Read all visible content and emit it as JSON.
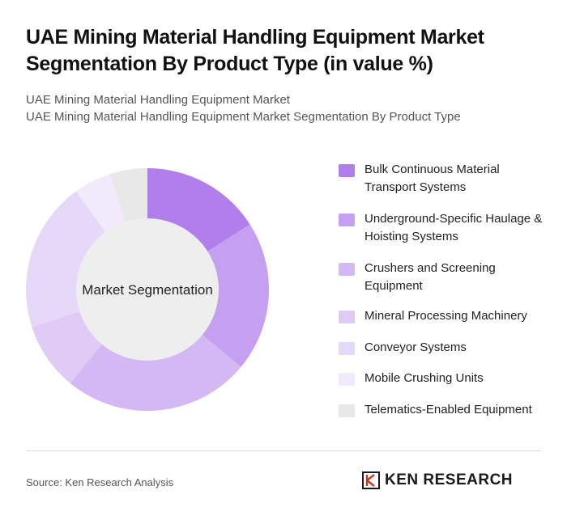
{
  "header": {
    "title": "UAE Mining Material Handling Equipment Market Segmentation By Product Type (in value %)",
    "subtitle_line1": "UAE Mining Material Handling Equipment Market",
    "subtitle_line2": "UAE Mining Material Handling Equipment Market Segmentation By Product Type"
  },
  "chart_data": {
    "type": "pie",
    "center_label": "Market Segmentation",
    "slices": [
      {
        "label": "Bulk Continuous Material Transport Systems",
        "value": 16,
        "color": "#b07fec"
      },
      {
        "label": "Underground-Specific Haulage & Hoisting Systems",
        "value": 20,
        "color": "#c59ff0"
      },
      {
        "label": "Crushers and Screening Equipment",
        "value": 25,
        "color": "#d4b8f3"
      },
      {
        "label": "Mineral Processing Machinery",
        "value": 9,
        "color": "#dfcbf6"
      },
      {
        "label": "Conveyor Systems",
        "value": 20,
        "color": "#e6d8f8"
      },
      {
        "label": "Mobile Crushing Units",
        "value": 5,
        "color": "#f1eafb"
      },
      {
        "label": "Telematics-Enabled Equipment",
        "value": 5,
        "color": "#e8e8e8"
      }
    ]
  },
  "footer": {
    "source": "Source: Ken Research Analysis",
    "logo_text": "KEN RESEARCH"
  }
}
